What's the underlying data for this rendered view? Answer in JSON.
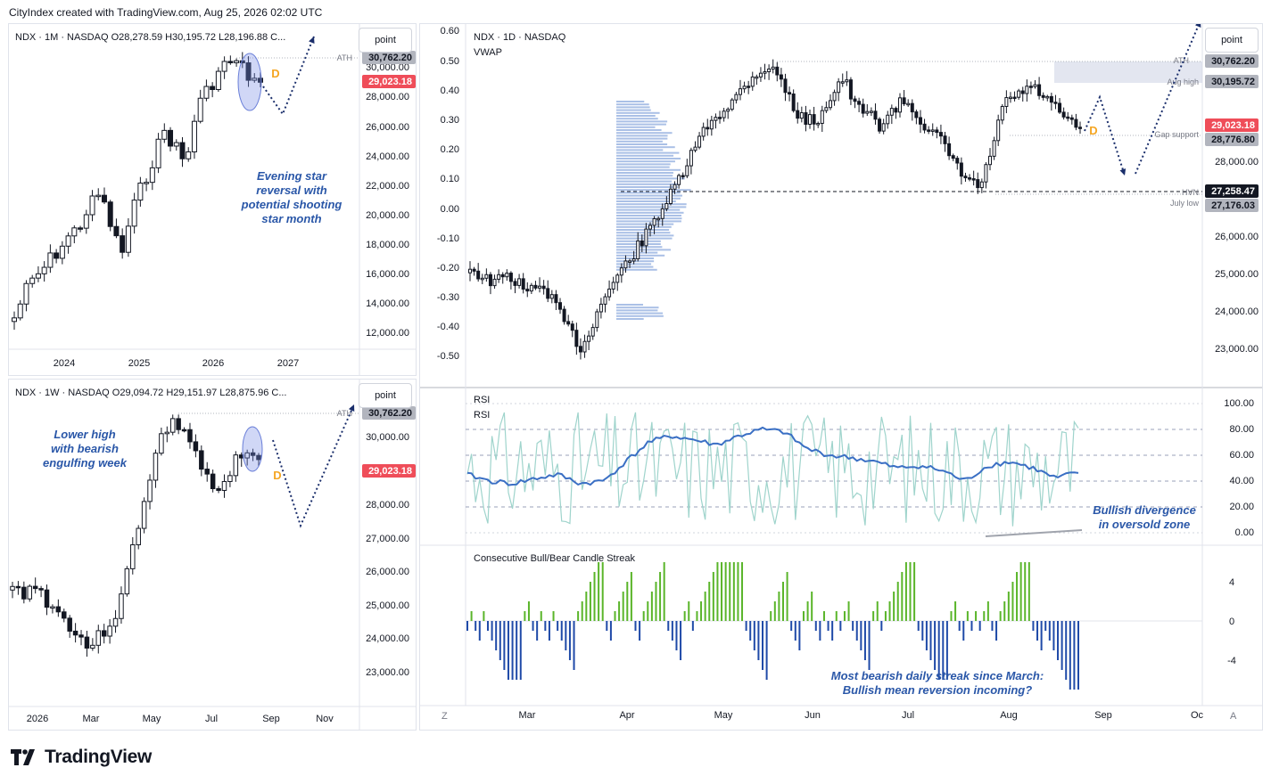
{
  "header": {
    "text": "CityIndex created with TradingView.com, Aug 25, 2026 02:02 UTC"
  },
  "brand": "TradingView",
  "colors": {
    "bull": "#089981",
    "bear": "#131722",
    "accent": "#2a57a8",
    "rsi_fast": "#9fd4cc",
    "rsi_slow": "#3a6fc4",
    "streak_up": "#5ab52a",
    "streak_down": "#1f4aa8",
    "last_price": "#ef4d59"
  },
  "monthly": {
    "info": "NDX · 1M · NASDAQ  O28,278.59  H30,195.72  L28,196.88  C...",
    "point_label": "point",
    "annotation": [
      "Evening star",
      "reversal with",
      "potential shooting",
      "star month"
    ],
    "marker": "D",
    "ath_label": "ATH",
    "price_labels": [
      {
        "text": "30,762.20",
        "kind": "ath"
      },
      {
        "text": "29,023.18",
        "kind": "last"
      }
    ],
    "y_ticks": [
      "30,000.00",
      "28,000.00",
      "26,000.00",
      "24,000.00",
      "22,000.00",
      "20,000.00",
      "18,000.00",
      "16,000.00",
      "14,000.00",
      "12,000.00"
    ],
    "x_ticks": [
      "2024",
      "2025",
      "2026",
      "2027"
    ]
  },
  "weekly": {
    "info": "NDX · 1W · NASDAQ  O29,094.72  H29,151.97  L28,875.96  C...",
    "point_label": "point",
    "annotation": [
      "Lower high",
      "with bearish",
      "engulfing week"
    ],
    "marker": "D",
    "ath_label": "ATH",
    "price_labels": [
      {
        "text": "30,762.20",
        "kind": "ath"
      },
      {
        "text": "29,023.18",
        "kind": "last"
      }
    ],
    "y_ticks": [
      "30,000.00",
      "28,000.00",
      "27,000.00",
      "26,000.00",
      "25,000.00",
      "24,000.00",
      "23,000.00"
    ],
    "x_ticks": [
      "2026",
      "Mar",
      "May",
      "Jul",
      "Sep",
      "Nov"
    ]
  },
  "daily": {
    "info": "NDX · 1D · NASDAQ",
    "sub_info": "VWAP",
    "point_label": "point",
    "marker": "D",
    "left_ticks": [
      "0.60",
      "0.50",
      "0.40",
      "0.30",
      "0.20",
      "0.10",
      "0.00",
      "-0.10",
      "-0.20",
      "-0.30",
      "-0.40",
      "-0.50"
    ],
    "right_ticks": [
      "28,000.00",
      "26,000.00",
      "25,000.00",
      "24,000.00",
      "23,000.00"
    ],
    "level_texts": [
      "ATH",
      "Aug high",
      "Gap support",
      "HVN",
      "July low"
    ],
    "price_labels": [
      {
        "text": "30,762.20",
        "kind": "gray"
      },
      {
        "text": "30,195.72",
        "kind": "gray"
      },
      {
        "text": "29,023.18",
        "kind": "last"
      },
      {
        "text": "28,776.80",
        "kind": "gray"
      },
      {
        "text": "27,258.47",
        "kind": "dark"
      },
      {
        "text": "27,176.03",
        "kind": "gray"
      }
    ],
    "x_ticks": [
      "Mar",
      "Apr",
      "May",
      "Jun",
      "Jul",
      "Aug",
      "Sep",
      "Oc"
    ],
    "corner_left": "Z",
    "corner_right": "A"
  },
  "rsi": {
    "labels": [
      "RSI",
      "RSI"
    ],
    "y_ticks": [
      "100.00",
      "80.00",
      "60.00",
      "40.00",
      "20.00",
      "0.00"
    ],
    "annotation": [
      "Bullish divergence",
      "in oversold zone"
    ]
  },
  "streak": {
    "label": "Consecutive Bull/Bear Candle Streak",
    "y_ticks": [
      "4",
      "0",
      "-4"
    ],
    "annotation": [
      "Most bearish daily streak since March:",
      "Bullish mean reversion incoming?"
    ]
  },
  "chart_data": [
    {
      "type": "candlestick",
      "title": "NDX · 1M · NASDAQ",
      "ylim": [
        12000,
        31500
      ],
      "x_ticks": [
        "2024",
        "2025",
        "2026",
        "2027"
      ],
      "last_candle": {
        "open": 28278.59,
        "high": 30195.72,
        "low": 28196.88
      },
      "levels": {
        "ATH": 30762.2,
        "last": 29023.18
      }
    },
    {
      "type": "candlestick",
      "title": "NDX · 1W · NASDAQ",
      "ylim": [
        22500,
        31000
      ],
      "x_ticks": [
        "2026",
        "Mar",
        "May",
        "Jul",
        "Sep",
        "Nov"
      ],
      "last_candle": {
        "open": 29094.72,
        "high": 29151.97,
        "low": 28875.96
      },
      "levels": {
        "ATH": 30762.2,
        "last": 29023.18
      }
    },
    {
      "type": "candlestick",
      "title": "NDX · 1D · NASDAQ",
      "series": [
        {
          "name": "VWAP"
        }
      ],
      "levels": {
        "ATH": 30762.2,
        "Aug high": 30195.72,
        "last": 29023.18,
        "Gap support": 28776.8,
        "HVN": 27258.47,
        "July low": 27176.03
      },
      "x_ticks": [
        "Mar",
        "Apr",
        "May",
        "Jun",
        "Jul",
        "Aug",
        "Sep",
        "Oc"
      ]
    },
    {
      "type": "line",
      "title": "RSI",
      "ylim": [
        0,
        100
      ],
      "y_ticks": [
        100,
        80,
        60,
        40,
        20,
        0
      ]
    },
    {
      "type": "bar",
      "title": "Consecutive Bull/Bear Candle Streak",
      "y_ticks": [
        4,
        0,
        -4
      ]
    }
  ]
}
